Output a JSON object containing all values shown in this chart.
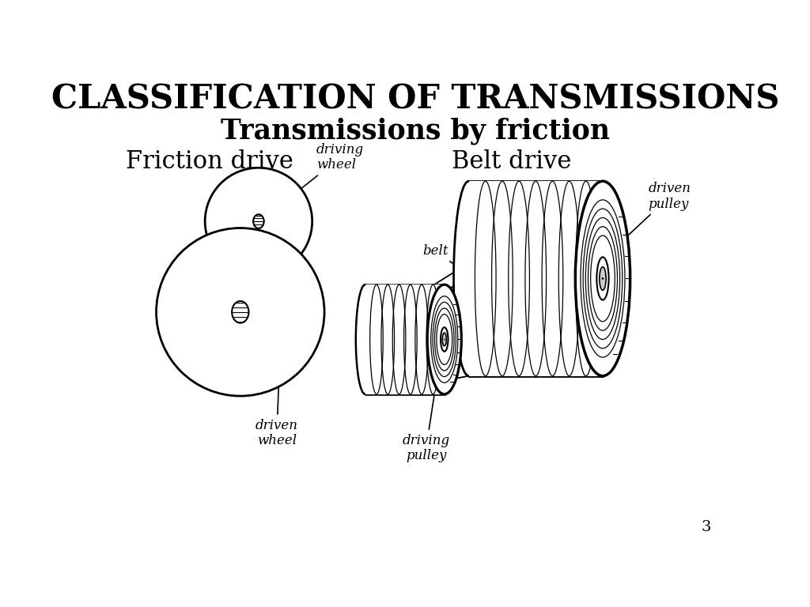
{
  "title": "CLASSIFICATION OF TRANSMISSIONS",
  "subtitle": "Transmissions by friction",
  "left_label": "Friction drive",
  "right_label": "Belt drive",
  "page_number": "3",
  "bg_color": "#ffffff",
  "text_color": "#000000",
  "title_fontsize": 30,
  "subtitle_fontsize": 25,
  "label_fontsize": 22,
  "annotation_fontsize": 12,
  "page_fontsize": 14
}
